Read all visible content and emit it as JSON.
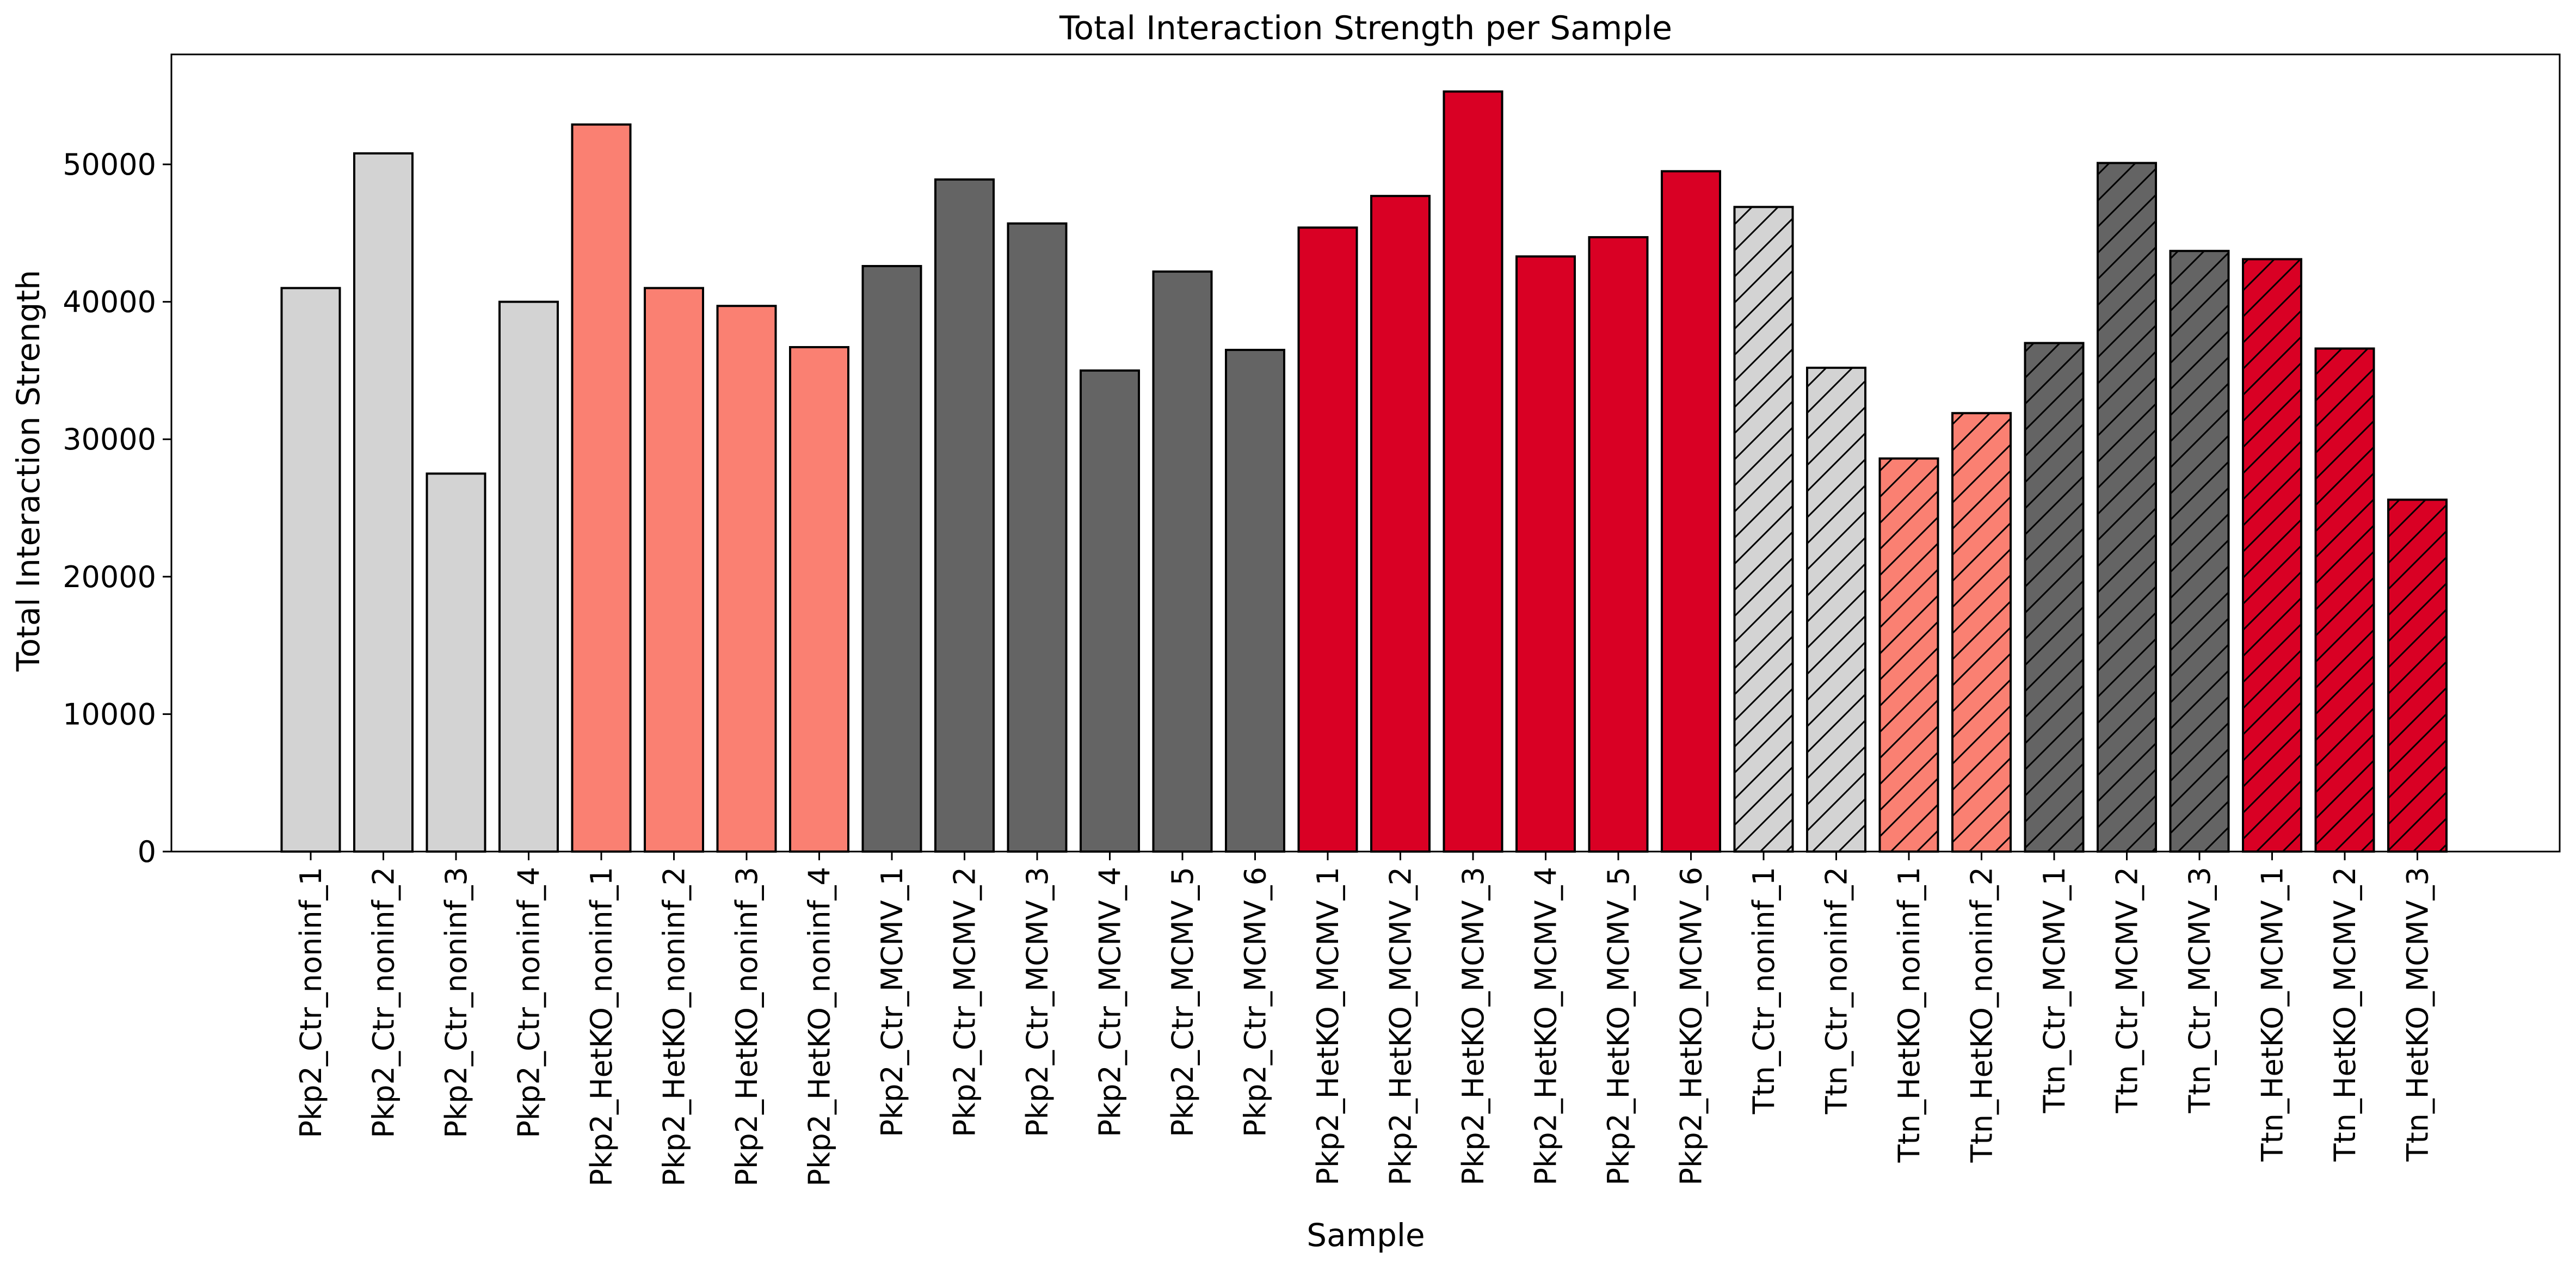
{
  "chart_data": {
    "type": "bar",
    "title": "Total Interaction Strength per Sample",
    "xlabel": "Sample",
    "ylabel": "Total Interaction Strength",
    "ylim": [
      0,
      58000
    ],
    "yticks": [
      0,
      10000,
      20000,
      30000,
      40000,
      50000
    ],
    "grid": false,
    "categories": [
      "Pkp2_Ctr_noninf_1",
      "Pkp2_Ctr_noninf_2",
      "Pkp2_Ctr_noninf_3",
      "Pkp2_Ctr_noninf_4",
      "Pkp2_HetKO_noninf_1",
      "Pkp2_HetKO_noninf_2",
      "Pkp2_HetKO_noninf_3",
      "Pkp2_HetKO_noninf_4",
      "Pkp2_Ctr_MCMV_1",
      "Pkp2_Ctr_MCMV_2",
      "Pkp2_Ctr_MCMV_3",
      "Pkp2_Ctr_MCMV_4",
      "Pkp2_Ctr_MCMV_5",
      "Pkp2_Ctr_MCMV_6",
      "Pkp2_HetKO_MCMV_1",
      "Pkp2_HetKO_MCMV_2",
      "Pkp2_HetKO_MCMV_3",
      "Pkp2_HetKO_MCMV_4",
      "Pkp2_HetKO_MCMV_5",
      "Pkp2_HetKO_MCMV_6",
      "Ttn_Ctr_noninf_1",
      "Ttn_Ctr_noninf_2",
      "Ttn_HetKO_noninf_1",
      "Ttn_HetKO_noninf_2",
      "Ttn_Ctr_MCMV_1",
      "Ttn_Ctr_MCMV_2",
      "Ttn_Ctr_MCMV_3",
      "Ttn_HetKO_MCMV_1",
      "Ttn_HetKO_MCMV_2",
      "Ttn_HetKO_MCMV_3"
    ],
    "values": [
      41000,
      50800,
      27500,
      40000,
      52900,
      41000,
      39700,
      36700,
      42600,
      48900,
      45700,
      35000,
      42200,
      36500,
      45400,
      47700,
      55300,
      43300,
      44700,
      49500,
      46900,
      35200,
      28600,
      31900,
      37000,
      50100,
      43700,
      43100,
      36600,
      25600
    ],
    "colors": [
      "#d3d3d3",
      "#d3d3d3",
      "#d3d3d3",
      "#d3d3d3",
      "#fa8072",
      "#fa8072",
      "#fa8072",
      "#fa8072",
      "#646464",
      "#646464",
      "#646464",
      "#646464",
      "#646464",
      "#646464",
      "#d90024",
      "#d90024",
      "#d90024",
      "#d90024",
      "#d90024",
      "#d90024",
      "#d3d3d3",
      "#d3d3d3",
      "#fa8072",
      "#fa8072",
      "#646464",
      "#646464",
      "#646464",
      "#d90024",
      "#d90024",
      "#d90024"
    ],
    "hatched": [
      false,
      false,
      false,
      false,
      false,
      false,
      false,
      false,
      false,
      false,
      false,
      false,
      false,
      false,
      false,
      false,
      false,
      false,
      false,
      false,
      true,
      true,
      true,
      true,
      true,
      true,
      true,
      true,
      true,
      true
    ]
  }
}
